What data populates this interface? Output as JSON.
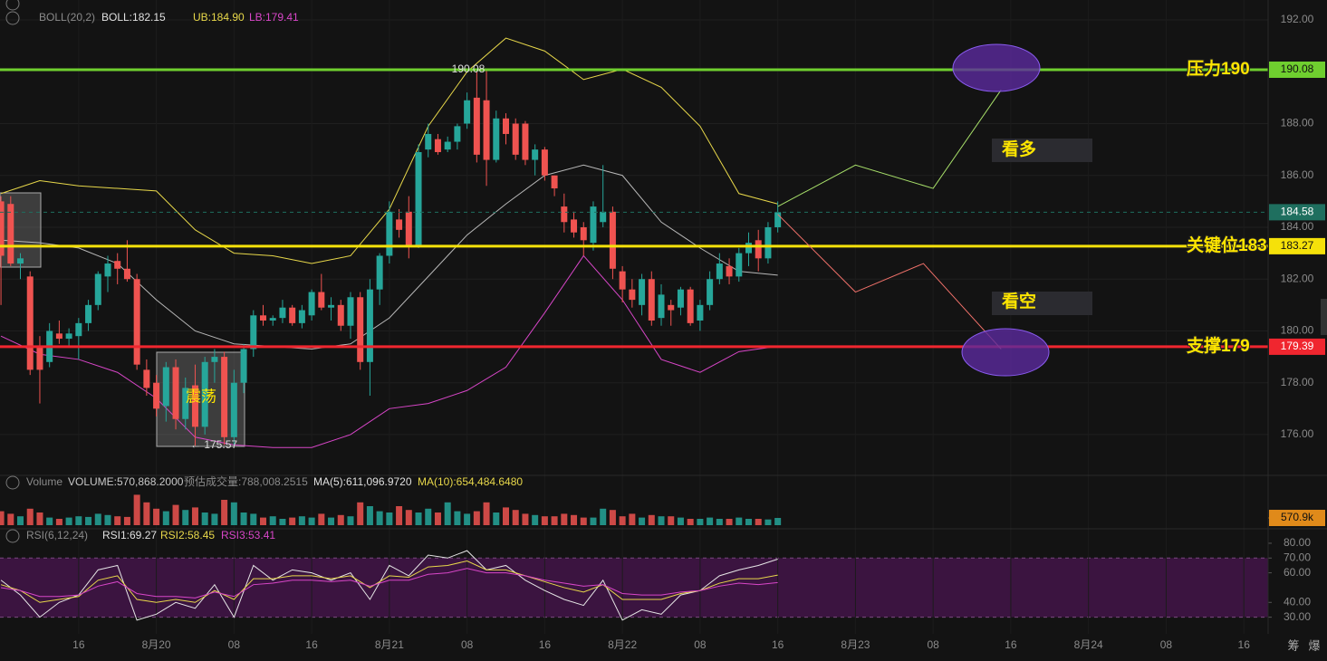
{
  "chart_data": [
    {
      "type": "candlestick",
      "header": [
        "BOLL(20,2)",
        "BOLL:182.15",
        "UB:184.90",
        "LB:179.41"
      ],
      "xlim": [
        -8.1,
        122.5
      ],
      "ylim": [
        174.6,
        192.77
      ],
      "yticks": [
        {
          "value": 192,
          "label": "192.00"
        },
        {
          "value": 188,
          "label": "188.00"
        },
        {
          "value": 186,
          "label": "186.00"
        },
        {
          "value": 184,
          "label": "184.00"
        },
        {
          "value": 182,
          "label": "182.00"
        },
        {
          "value": 180,
          "label": "180.00"
        },
        {
          "value": 178,
          "label": "178.00"
        },
        {
          "value": 176,
          "label": "176.00"
        }
      ],
      "up_color": "#26a69a",
      "down_color": "#ef5350",
      "x": [
        -8,
        -7,
        -6,
        -5,
        -4,
        -3,
        -2,
        -1,
        0,
        1,
        2,
        3,
        4,
        5,
        6,
        7,
        8,
        9,
        10,
        11,
        12,
        13,
        14,
        15,
        16,
        17,
        18,
        19,
        20,
        21,
        22,
        23,
        24,
        25,
        26,
        27,
        28,
        29,
        30,
        31,
        32,
        33,
        34,
        35,
        36,
        37,
        38,
        39,
        40,
        41,
        42,
        43,
        44,
        45,
        46,
        47,
        48,
        49,
        50,
        51,
        52,
        53,
        54,
        55,
        56,
        57,
        58,
        59,
        60,
        61,
        62,
        63,
        64,
        65,
        66,
        67,
        68,
        69,
        70,
        71,
        72
      ],
      "candles": [
        [
          185.0,
          185.2,
          181.0,
          182.9
        ],
        [
          184.9,
          185.2,
          182.5,
          182.6
        ],
        [
          182.6,
          183.0,
          182.0,
          182.8
        ],
        [
          182.1,
          182.3,
          178.3,
          178.5
        ],
        [
          179.4,
          179.8,
          177.2,
          178.5
        ],
        [
          178.8,
          180.3,
          178.6,
          180.0
        ],
        [
          179.9,
          180.4,
          179.5,
          179.7
        ],
        [
          179.7,
          180.1,
          179.4,
          179.9
        ],
        [
          179.8,
          180.5,
          178.9,
          180.3
        ],
        [
          180.3,
          181.2,
          180.0,
          181.0
        ],
        [
          181.0,
          182.3,
          180.8,
          182.2
        ],
        [
          182.1,
          182.9,
          181.5,
          182.6
        ],
        [
          182.7,
          183.0,
          181.8,
          182.4
        ],
        [
          182.4,
          183.5,
          181.9,
          182.0
        ],
        [
          182.0,
          182.2,
          178.5,
          178.7
        ],
        [
          178.5,
          178.9,
          177.5,
          177.8
        ],
        [
          178.0,
          178.3,
          176.7,
          177.0
        ],
        [
          177.1,
          178.8,
          176.5,
          178.6
        ],
        [
          178.6,
          178.9,
          176.2,
          176.6
        ],
        [
          176.6,
          178.2,
          176.2,
          177.8
        ],
        [
          177.9,
          178.7,
          175.57,
          176.3
        ],
        [
          176.3,
          179.0,
          176.0,
          178.8
        ],
        [
          178.8,
          179.3,
          178.0,
          179.0
        ],
        [
          179.0,
          179.2,
          175.6,
          175.9
        ],
        [
          175.9,
          178.5,
          175.6,
          178.0
        ],
        [
          178.0,
          179.5,
          177.6,
          179.3
        ],
        [
          179.3,
          180.8,
          179.0,
          180.6
        ],
        [
          180.6,
          181.0,
          180.2,
          180.4
        ],
        [
          180.4,
          180.6,
          180.2,
          180.5
        ],
        [
          180.5,
          181.2,
          180.3,
          180.9
        ],
        [
          180.9,
          181.0,
          180.2,
          180.3
        ],
        [
          180.3,
          181.0,
          180.1,
          180.8
        ],
        [
          180.6,
          181.6,
          180.4,
          181.5
        ],
        [
          181.5,
          182.2,
          180.8,
          180.9
        ],
        [
          180.9,
          181.3,
          180.4,
          181.0
        ],
        [
          181.0,
          181.2,
          180.0,
          180.2
        ],
        [
          180.2,
          181.5,
          179.7,
          181.3
        ],
        [
          181.3,
          181.5,
          178.5,
          178.8
        ],
        [
          178.8,
          182.0,
          177.5,
          181.6
        ],
        [
          181.6,
          183.0,
          181.0,
          182.9
        ],
        [
          182.9,
          185.0,
          182.6,
          184.6
        ],
        [
          184.3,
          184.7,
          183.6,
          183.9
        ],
        [
          184.6,
          185.2,
          182.8,
          183.3
        ],
        [
          183.3,
          187.2,
          183.2,
          186.9
        ],
        [
          187.0,
          188.0,
          186.7,
          187.6
        ],
        [
          187.4,
          187.6,
          186.8,
          186.9
        ],
        [
          187.0,
          187.5,
          186.9,
          187.3
        ],
        [
          187.3,
          188.0,
          187.0,
          187.9
        ],
        [
          188.0,
          189.2,
          187.8,
          188.9
        ],
        [
          189.0,
          190.0,
          186.5,
          186.8
        ],
        [
          188.9,
          190.08,
          185.6,
          186.6
        ],
        [
          186.6,
          188.5,
          186.5,
          188.2
        ],
        [
          188.2,
          188.4,
          187.2,
          187.6
        ],
        [
          188.0,
          188.2,
          186.6,
          186.8
        ],
        [
          188.0,
          188.1,
          186.4,
          186.6
        ],
        [
          186.6,
          187.2,
          186.0,
          187.0
        ],
        [
          187.0,
          187.1,
          185.8,
          186.0
        ],
        [
          186.0,
          186.0,
          185.2,
          185.5
        ],
        [
          184.8,
          185.3,
          183.8,
          184.2
        ],
        [
          184.3,
          184.6,
          183.6,
          183.8
        ],
        [
          184.0,
          184.2,
          182.9,
          183.5
        ],
        [
          183.4,
          185.0,
          183.1,
          184.8
        ],
        [
          184.2,
          186.4,
          184.0,
          184.6
        ],
        [
          184.6,
          184.8,
          182.0,
          182.4
        ],
        [
          182.3,
          182.5,
          181.1,
          181.6
        ],
        [
          181.6,
          182.0,
          180.9,
          181.2
        ],
        [
          181.0,
          182.2,
          180.6,
          182.0
        ],
        [
          182.0,
          182.3,
          180.2,
          180.4
        ],
        [
          180.5,
          181.8,
          180.2,
          181.4
        ],
        [
          181.0,
          181.2,
          180.2,
          180.8
        ],
        [
          180.9,
          181.7,
          180.6,
          181.6
        ],
        [
          181.6,
          181.7,
          180.2,
          180.3
        ],
        [
          180.4,
          181.2,
          180.0,
          181.0
        ],
        [
          181.0,
          182.3,
          180.8,
          182.0
        ],
        [
          182.0,
          183.0,
          181.8,
          182.6
        ],
        [
          182.5,
          182.8,
          181.8,
          182.1
        ],
        [
          182.1,
          183.2,
          181.9,
          183.0
        ],
        [
          183.0,
          183.8,
          182.5,
          183.4
        ],
        [
          183.5,
          183.9,
          182.3,
          182.8
        ],
        [
          182.8,
          184.2,
          182.6,
          184.0
        ],
        [
          184.0,
          185.0,
          183.8,
          184.58
        ]
      ],
      "bands": {
        "x": [
          -8,
          -4,
          0,
          4,
          8,
          12,
          16,
          20,
          24,
          28,
          32,
          36,
          40,
          44,
          48,
          52,
          56,
          60,
          64,
          68,
          72
        ],
        "series": [
          {
            "color": "#e8d84a",
            "values": [
              185.3,
              185.8,
              185.6,
              185.5,
              185.4,
              183.9,
              183.0,
              182.9,
              182.6,
              182.9,
              184.7,
              187.9,
              190.0,
              191.3,
              190.8,
              189.7,
              190.1,
              189.4,
              187.9,
              185.3,
              184.9
            ]
          },
          {
            "color": "#b8b8b8",
            "values": [
              183.5,
              183.4,
              183.2,
              182.6,
              181.2,
              180.0,
              179.5,
              179.4,
              179.3,
              179.5,
              180.5,
              182.1,
              183.7,
              184.9,
              186.0,
              186.4,
              186.0,
              184.2,
              183.2,
              182.3,
              182.15
            ]
          },
          {
            "color": "#d846c8",
            "values": [
              179.8,
              179.1,
              178.9,
              178.4,
              177.4,
              175.9,
              175.6,
              175.5,
              175.5,
              176.0,
              177.0,
              177.2,
              177.7,
              178.6,
              180.7,
              182.9,
              181.2,
              178.9,
              178.4,
              179.2,
              179.41
            ]
          }
        ]
      },
      "levels": [
        {
          "value": 190.08,
          "name": "压力190",
          "color": "#6fcf2f",
          "text_color": "#111"
        },
        {
          "value": 183.27,
          "name": "关键位183",
          "color": "#f5e10a",
          "text_color": "#111"
        },
        {
          "value": 179.39,
          "name": "支撑179",
          "color": "#f0262f",
          "text_color": "#fff"
        },
        {
          "value": 184.58,
          "color": "#1f6f5f",
          "text_color": "#fff",
          "dashed": true
        }
      ],
      "projections": [
        {
          "color": "#a8e06a",
          "x": [
            72,
            80,
            88,
            95
          ],
          "values": [
            184.8,
            186.4,
            185.5,
            189.3
          ]
        },
        {
          "color": "#f0716a",
          "x": [
            72,
            80,
            87,
            95
          ],
          "values": [
            184.5,
            181.5,
            182.6,
            179.3
          ]
        }
      ],
      "high_label": "190.08",
      "low_label": "← 175.57",
      "range_label": "震荡",
      "view_labels": [
        "看多",
        "看空"
      ]
    },
    {
      "type": "bar",
      "header": [
        "Volume",
        "VOLUME:570,868.2000",
        "预估成交量:788,008.2515",
        "MA(5):611,096.9720",
        "MA(10):654,484.6480"
      ],
      "xlim": [
        -8.1,
        122.5
      ],
      "ylim": [
        0,
        2500000
      ],
      "yticks": [
        {
          "value": 570868.2,
          "label": "570.9k"
        }
      ],
      "x": [
        -8,
        -7,
        -6,
        -5,
        -4,
        -3,
        -2,
        -1,
        0,
        1,
        2,
        3,
        4,
        5,
        6,
        7,
        8,
        9,
        10,
        11,
        12,
        13,
        14,
        15,
        16,
        17,
        18,
        19,
        20,
        21,
        22,
        23,
        24,
        25,
        26,
        27,
        28,
        29,
        30,
        31,
        32,
        33,
        34,
        35,
        36,
        37,
        38,
        39,
        40,
        41,
        42,
        43,
        44,
        45,
        46,
        47,
        48,
        49,
        50,
        51,
        52,
        53,
        54,
        55,
        56,
        57,
        58,
        59,
        60,
        61,
        62,
        63,
        64,
        65,
        66,
        67,
        68,
        69,
        70,
        71,
        72
      ],
      "values": [
        1100000,
        900000,
        700000,
        1300000,
        1000000,
        600000,
        500000,
        600000,
        700000,
        650000,
        900000,
        800000,
        700000,
        650000,
        2400000,
        1800000,
        1300000,
        1100000,
        1600000,
        1200000,
        1400000,
        1000000,
        900000,
        2000000,
        1800000,
        1000000,
        900000,
        600000,
        700000,
        500000,
        600000,
        700000,
        600000,
        900000,
        600000,
        800000,
        700000,
        1800000,
        1500000,
        1100000,
        1000000,
        1500000,
        1200000,
        1000000,
        1300000,
        1000000,
        1800000,
        1100000,
        900000,
        1100000,
        1800000,
        1000000,
        1400000,
        1200000,
        900000,
        800000,
        700000,
        700000,
        900000,
        800000,
        600000,
        600000,
        1300000,
        1200000,
        700000,
        900000,
        600000,
        800000,
        700000,
        700000,
        600000,
        500000,
        500000,
        600000,
        500000,
        500000,
        600000,
        500000,
        500000,
        450000,
        570868.2
      ]
    },
    {
      "type": "line",
      "header": [
        "RSI(6,12,24)",
        "RSI1:69.27",
        "RSI2:58.45",
        "RSI3:53.41"
      ],
      "xlim": [
        -8.1,
        122.5
      ],
      "ylim": [
        21.8,
        86.1
      ],
      "yticks": [
        {
          "value": 80,
          "label": "80.00"
        },
        {
          "value": 70,
          "label": "70.00"
        },
        {
          "value": 60,
          "label": "60.00"
        },
        {
          "value": 40,
          "label": "40.00"
        },
        {
          "value": 30,
          "label": "30.00"
        }
      ],
      "band": [
        30,
        70
      ],
      "xticks": [
        {
          "value": 0,
          "label": "16"
        },
        {
          "value": 8,
          "label": "8月20"
        },
        {
          "value": 16,
          "label": "08"
        },
        {
          "value": 24,
          "label": "16"
        },
        {
          "value": 32,
          "label": "8月21"
        },
        {
          "value": 40,
          "label": "08"
        },
        {
          "value": 48,
          "label": "16"
        },
        {
          "value": 56,
          "label": "8月22"
        },
        {
          "value": 64,
          "label": "08"
        },
        {
          "value": 72,
          "label": "16"
        },
        {
          "value": 80,
          "label": "8月23"
        },
        {
          "value": 88,
          "label": "08"
        },
        {
          "value": 96,
          "label": "16"
        },
        {
          "value": 104,
          "label": "8月24"
        },
        {
          "value": 112,
          "label": "08"
        },
        {
          "value": 120,
          "label": "16"
        }
      ],
      "x": [
        -8,
        -6,
        -4,
        -2,
        0,
        2,
        4,
        6,
        8,
        10,
        12,
        14,
        16,
        18,
        20,
        22,
        24,
        26,
        28,
        30,
        32,
        34,
        36,
        38,
        40,
        42,
        44,
        46,
        48,
        50,
        52,
        54,
        56,
        58,
        60,
        62,
        64,
        66,
        68,
        70,
        72
      ],
      "series": [
        {
          "color": "#e6e6e6",
          "values": [
            55,
            45,
            30,
            40,
            45,
            62,
            65,
            28,
            32,
            40,
            36,
            52,
            30,
            65,
            55,
            62,
            60,
            55,
            60,
            42,
            65,
            58,
            72,
            70,
            75,
            62,
            65,
            55,
            48,
            42,
            38,
            55,
            28,
            35,
            32,
            45,
            48,
            58,
            62,
            65,
            69.27
          ]
        },
        {
          "color": "#e8d84a",
          "values": [
            52,
            48,
            40,
            42,
            44,
            55,
            58,
            42,
            40,
            42,
            40,
            48,
            42,
            56,
            56,
            58,
            58,
            56,
            58,
            50,
            58,
            57,
            64,
            65,
            68,
            62,
            62,
            58,
            54,
            50,
            47,
            52,
            42,
            42,
            42,
            46,
            48,
            53,
            56,
            56,
            58.45
          ]
        },
        {
          "color": "#d846c8",
          "values": [
            50,
            48,
            44,
            44,
            45,
            51,
            54,
            46,
            44,
            44,
            43,
            47,
            44,
            52,
            53,
            55,
            55,
            54,
            55,
            51,
            55,
            55,
            59,
            60,
            63,
            60,
            60,
            58,
            55,
            53,
            51,
            52,
            46,
            45,
            45,
            47,
            48,
            51,
            53,
            52,
            53.41
          ]
        }
      ]
    }
  ],
  "toolbar": [
    "筹",
    "爆"
  ]
}
